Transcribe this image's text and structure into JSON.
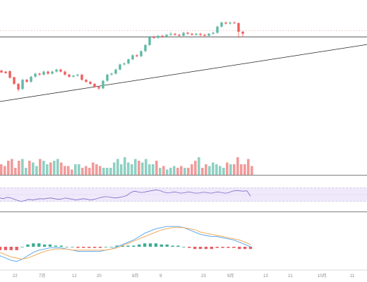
{
  "chart_data": [
    {
      "type": "candlestick",
      "panel": "price",
      "ohlc": [
        [
          2.0,
          0.0,
          3.0,
          1.5
        ],
        [
          1.0,
          -0.5,
          1.5,
          -1.0
        ],
        [
          1.5,
          -5.0,
          2.0,
          -6.0
        ],
        [
          -4.5,
          -11.0,
          -4.0,
          -12.0
        ],
        [
          -11.0,
          -16.5,
          -10.0,
          -18.5
        ],
        [
          -16.0,
          -7.0,
          -6.0,
          -17.0
        ],
        [
          -7.0,
          -9.0,
          -6.0,
          -10.0
        ],
        [
          -9.0,
          -4.0,
          -3.0,
          -10.0
        ],
        [
          -4.0,
          -1.0,
          0.0,
          -5.0
        ],
        [
          -1.0,
          -2.0,
          0.0,
          -3.0
        ],
        [
          -2.0,
          1.0,
          2.0,
          -3.0
        ],
        [
          1.0,
          -1.0,
          2.0,
          -2.0
        ],
        [
          -1.0,
          1.0,
          2.0,
          -2.0
        ],
        [
          1.0,
          3.0,
          4.0,
          0.0
        ],
        [
          3.0,
          1.0,
          4.0,
          0.0
        ],
        [
          1.0,
          -2.0,
          2.0,
          -3.0
        ],
        [
          -2.0,
          -4.0,
          -1.0,
          -5.0
        ],
        [
          -4.0,
          -3.0,
          -2.0,
          -5.0
        ],
        [
          -3.0,
          -2.0,
          -1.0,
          -4.0
        ],
        [
          -2.0,
          -7.0,
          -1.0,
          -8.0
        ],
        [
          -7.0,
          -9.0,
          -6.0,
          -10.0
        ],
        [
          -9.0,
          -11.0,
          -8.0,
          -12.0
        ],
        [
          -11.0,
          -14.0,
          -10.0,
          -15.0
        ],
        [
          -14.0,
          -15.5,
          -13.0,
          -17.0
        ],
        [
          -15.5,
          -8.0,
          -7.0,
          -16.0
        ],
        [
          -8.0,
          -2.0,
          -1.0,
          -9.0
        ],
        [
          -2.0,
          -1.0,
          0.0,
          -3.0
        ],
        [
          -1.0,
          3.0,
          4.0,
          -2.0
        ],
        [
          3.0,
          8.0,
          9.0,
          2.0
        ],
        [
          8.0,
          9.0,
          10.0,
          7.0
        ],
        [
          9.0,
          13.0,
          14.0,
          8.0
        ],
        [
          13.0,
          17.0,
          18.0,
          12.0
        ],
        [
          17.0,
          16.0,
          18.0,
          15.0
        ],
        [
          16.0,
          21.0,
          22.0,
          15.0
        ],
        [
          21.0,
          27.0,
          28.0,
          20.0
        ],
        [
          27.0,
          35.0,
          36.0,
          26.0
        ],
        [
          35.0,
          34.0,
          36.0,
          33.0
        ],
        [
          34.0,
          36.0,
          37.0,
          33.0
        ],
        [
          36.0,
          35.0,
          37.0,
          34.0
        ],
        [
          35.0,
          37.0,
          38.0,
          34.0
        ],
        [
          37.0,
          38.0,
          40.0,
          36.0
        ],
        [
          38.0,
          37.0,
          39.0,
          36.0
        ],
        [
          37.0,
          36.0,
          38.0,
          35.0
        ],
        [
          36.0,
          39.0,
          40.0,
          35.0
        ],
        [
          39.0,
          38.0,
          40.0,
          37.0
        ],
        [
          38.0,
          37.0,
          39.0,
          36.0
        ],
        [
          37.0,
          38.0,
          39.0,
          36.0
        ],
        [
          38.0,
          37.0,
          39.0,
          35.0
        ],
        [
          37.0,
          36.0,
          38.0,
          35.0
        ],
        [
          36.0,
          38.0,
          39.0,
          35.0
        ],
        [
          38.0,
          39.0,
          40.0,
          37.0
        ],
        [
          39.0,
          45.0,
          46.0,
          38.0
        ],
        [
          45.0,
          49.0,
          50.0,
          44.0
        ],
        [
          49.0,
          48.0,
          50.0,
          47.0
        ],
        [
          48.0,
          49.0,
          50.0,
          47.0
        ],
        [
          49.0,
          48.5,
          50.0,
          47.5
        ],
        [
          48.5,
          40.0,
          49.0,
          34.0
        ],
        [
          40.0,
          38.0,
          41.0,
          35.0
        ]
      ],
      "trendlines": [
        {
          "style": "horizontal",
          "value": 35
        },
        {
          "style": "rising",
          "from_bar": -3,
          "from_value": -30,
          "to_bar": 98,
          "to_value": 35
        }
      ],
      "reference_line": {
        "value": 41,
        "dashed": true
      },
      "colors": {
        "up": "#5fb9a6",
        "down": "#ef5d5d",
        "line": "#222222"
      }
    },
    {
      "type": "bar",
      "panel": "volume",
      "values": [
        6,
        5,
        8,
        9,
        4,
        8,
        9,
        4,
        8,
        7,
        5,
        9,
        8,
        6,
        7,
        8,
        9,
        7,
        5,
        5,
        3,
        6,
        6,
        4,
        5,
        4,
        7,
        6,
        5,
        4,
        4,
        4,
        7,
        9,
        6,
        10,
        7,
        6,
        9,
        8,
        7,
        9,
        6,
        6,
        8,
        4,
        5,
        3,
        4,
        5,
        4,
        5,
        4,
        4,
        6,
        8,
        10,
        4,
        6,
        5,
        7,
        6,
        5,
        4,
        7,
        6,
        6,
        10,
        6,
        6,
        9,
        5
      ],
      "colors": {
        "up": "#8fd0c3",
        "down": "#f29a9a"
      }
    },
    {
      "type": "line",
      "panel": "oscillator",
      "values": [
        40,
        38,
        42,
        40,
        36,
        32,
        30,
        33,
        36,
        34,
        36,
        38,
        37,
        39,
        40,
        38,
        36,
        37,
        40,
        38,
        36,
        34,
        36,
        38,
        36,
        34,
        36,
        39,
        42,
        44,
        43,
        41,
        40,
        42,
        44,
        48,
        56,
        60,
        58,
        56,
        58,
        60,
        62,
        64,
        62,
        58,
        55,
        56,
        58,
        56,
        54,
        56,
        58,
        56,
        54,
        55,
        57,
        56,
        54,
        56,
        58,
        56,
        54,
        56,
        60,
        62,
        61,
        60,
        61,
        45
      ],
      "reference_levels": [
        70,
        50,
        30
      ],
      "ylim": [
        0,
        100
      ],
      "colors": {
        "line": "#7a6bc6",
        "band": "#efe9fb"
      }
    },
    {
      "type": "line",
      "panel": "macd",
      "series": [
        {
          "values": [
            -8,
            -10,
            -12,
            -13,
            -11,
            -8,
            -5,
            -3,
            -2,
            -1,
            -1,
            -1,
            -2,
            -3,
            -4,
            -4,
            -4,
            -4,
            -4,
            -3,
            -2,
            0,
            2,
            4,
            6,
            9,
            12,
            14,
            16,
            17,
            18,
            18,
            18,
            17,
            15,
            13,
            11,
            10,
            9,
            9,
            8,
            7,
            6,
            4,
            2,
            0
          ]
        },
        {
          "values": [
            -5,
            -7,
            -9,
            -10,
            -11,
            -10,
            -8,
            -6,
            -4,
            -3,
            -2,
            -2,
            -2,
            -3,
            -3,
            -3,
            -3,
            -3,
            -3,
            -3,
            -2,
            -1,
            1,
            3,
            5,
            7,
            9,
            11,
            13,
            15,
            16,
            17,
            17,
            17,
            16,
            15,
            13,
            12,
            11,
            10,
            9,
            8,
            7,
            6,
            4,
            2
          ]
        }
      ],
      "histogram": [
        -3,
        -3,
        -3,
        -3,
        0,
        2,
        3,
        3,
        2,
        2,
        1,
        1,
        0,
        0,
        -1,
        -1,
        -1,
        -1,
        -1,
        0,
        0,
        1,
        1,
        1,
        1,
        2,
        3,
        3,
        3,
        2,
        2,
        1,
        1,
        0,
        -1,
        -2,
        -2,
        -2,
        -2,
        -1,
        -1,
        -1,
        -1,
        -2,
        -2,
        -2
      ],
      "colors": {
        "line_1": "#4aa3ef",
        "line_2": "#f2a24b",
        "up": "#1c9d80",
        "down": "#e0434a"
      }
    }
  ],
  "x_axis": {
    "tick_labels": [
      "22",
      "7月",
      "12",
      "20",
      "8月",
      "9",
      "23",
      "9月",
      "13",
      "21",
      "10月",
      "11"
    ]
  }
}
